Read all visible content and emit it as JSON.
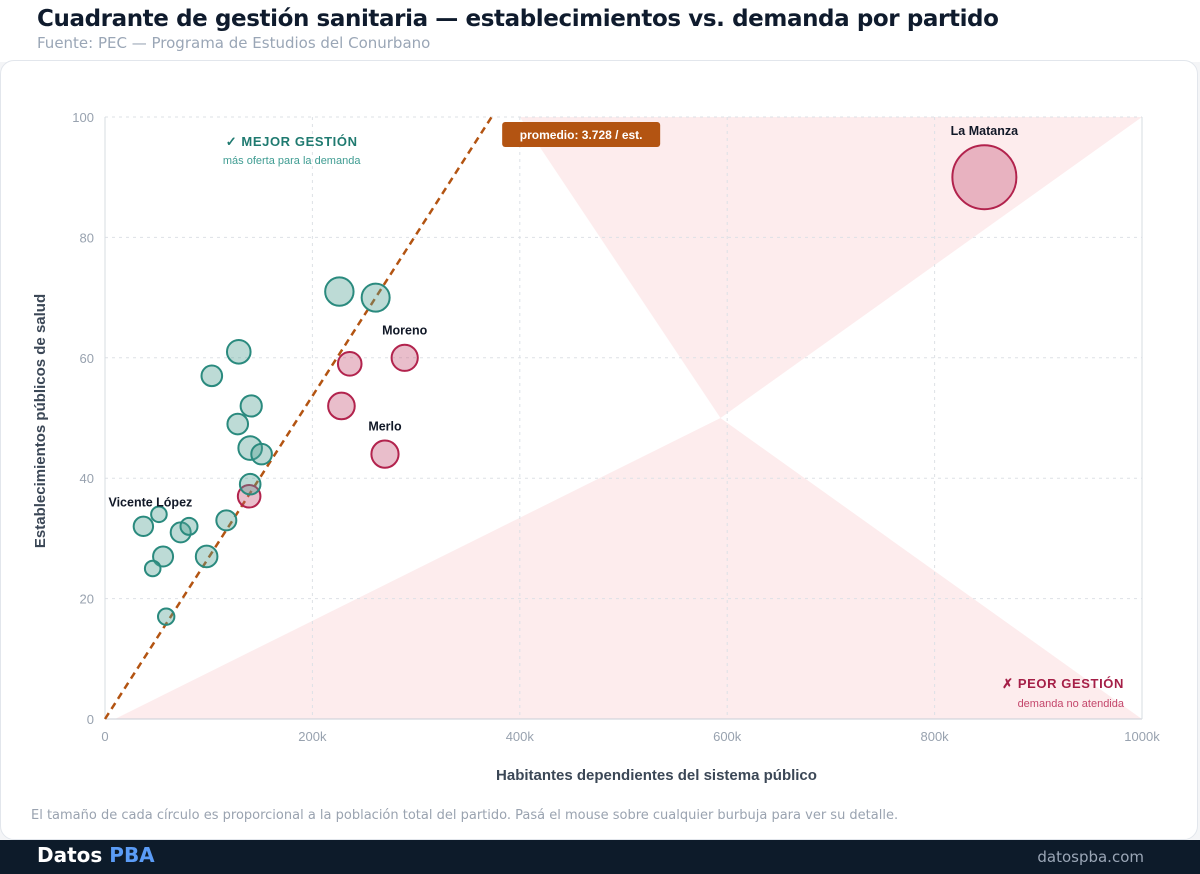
{
  "header": {
    "title": "Cuadrante de gestión sanitaria — establecimientos vs. demanda por partido",
    "subtitle": "Fuente: PEC — Programa de Estudios del Conurbano"
  },
  "footer": {
    "footnote": "El tamaño de cada círculo es proporcional a la población total del partido. Pasá el mouse sobre cualquier burbuja para ver su detalle.",
    "brand_main": "Datos",
    "brand_accent": "PBA",
    "site": "datospba.com"
  },
  "colors": {
    "better": "#2a8a7e",
    "worse": "#b2234d",
    "trend": "#b35412",
    "shade": "#fde9ea"
  },
  "chart_data": {
    "type": "scatter",
    "xlabel": "Habitantes dependientes del sistema público",
    "ylabel": "Establecimientos públicos de salud",
    "xlim": [
      0,
      1000000
    ],
    "ylim": [
      0,
      100
    ],
    "x_ticks": [
      {
        "v": 0,
        "label": "0"
      },
      {
        "v": 200000,
        "label": "200k"
      },
      {
        "v": 400000,
        "label": "400k"
      },
      {
        "v": 600000,
        "label": "600k"
      },
      {
        "v": 800000,
        "label": "800k"
      },
      {
        "v": 1000000,
        "label": "1000k"
      }
    ],
    "y_ticks": [
      0,
      20,
      40,
      60,
      80,
      100
    ],
    "grid": true,
    "trend": {
      "label": "promedio: 3.728 / est.",
      "per_establishment": 3728
    },
    "quadrants": {
      "better_title": "✓ MEJOR GESTIÓN",
      "better_sub": "más oferta para la demanda",
      "worse_title": "✗ PEOR GESTIÓN",
      "worse_sub": "demanda no atendida"
    },
    "points": [
      {
        "x": 848000,
        "y": 90,
        "pop": 1840000,
        "group": "worse",
        "label": "La Matanza"
      },
      {
        "x": 226000,
        "y": 71,
        "pop": 360000,
        "group": "better"
      },
      {
        "x": 261000,
        "y": 70,
        "pop": 350000,
        "group": "better"
      },
      {
        "x": 129000,
        "y": 61,
        "pop": 250000,
        "group": "better"
      },
      {
        "x": 103000,
        "y": 57,
        "pop": 190000,
        "group": "better"
      },
      {
        "x": 236000,
        "y": 59,
        "pop": 250000,
        "group": "worse"
      },
      {
        "x": 289000,
        "y": 60,
        "pop": 310000,
        "group": "worse",
        "label": "Moreno"
      },
      {
        "x": 141000,
        "y": 52,
        "pop": 200000,
        "group": "better"
      },
      {
        "x": 128000,
        "y": 49,
        "pop": 190000,
        "group": "better"
      },
      {
        "x": 228000,
        "y": 52,
        "pop": 320000,
        "group": "worse"
      },
      {
        "x": 140000,
        "y": 45,
        "pop": 250000,
        "group": "better"
      },
      {
        "x": 151000,
        "y": 44,
        "pop": 190000,
        "group": "better"
      },
      {
        "x": 270000,
        "y": 44,
        "pop": 330000,
        "group": "worse",
        "label": "Merlo"
      },
      {
        "x": 140000,
        "y": 39,
        "pop": 190000,
        "group": "better"
      },
      {
        "x": 139000,
        "y": 37,
        "pop": 230000,
        "group": "worse"
      },
      {
        "x": 52000,
        "y": 34,
        "pop": 110000,
        "group": "better"
      },
      {
        "x": 37000,
        "y": 32,
        "pop": 170000,
        "group": "better",
        "label": "Vicente López"
      },
      {
        "x": 81000,
        "y": 32,
        "pop": 130000,
        "group": "better"
      },
      {
        "x": 73000,
        "y": 31,
        "pop": 180000,
        "group": "better"
      },
      {
        "x": 117000,
        "y": 33,
        "pop": 180000,
        "group": "better"
      },
      {
        "x": 56000,
        "y": 27,
        "pop": 180000,
        "group": "better"
      },
      {
        "x": 98000,
        "y": 27,
        "pop": 210000,
        "group": "better"
      },
      {
        "x": 46000,
        "y": 25,
        "pop": 110000,
        "group": "better"
      },
      {
        "x": 59000,
        "y": 17,
        "pop": 120000,
        "group": "better"
      }
    ]
  }
}
